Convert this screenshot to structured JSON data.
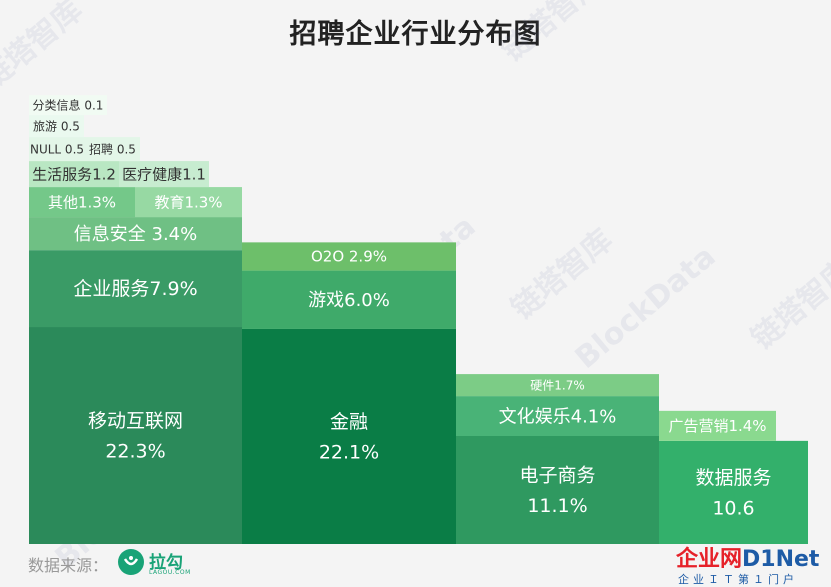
{
  "title": "招聘企业行业分布图",
  "source_label": "数据来源：",
  "logo": {
    "name": "拉勾",
    "sub": "LAGOU.COM"
  },
  "watermark": [
    "链塔智库",
    "BlockData"
  ],
  "brand": {
    "part1": "企业网",
    "part2": "D1Net",
    "tagline": "企业ＩＴ第１门户"
  },
  "chart_data": {
    "type": "stacked-bar",
    "title": "招聘企业行业分布图",
    "unit": "%",
    "columns": [
      {
        "id": "c1",
        "blocks": [
          {
            "name": "移动互联网",
            "value": 22.3,
            "label": "移动互联网\n22.3%",
            "color": "#2b8a5a"
          },
          {
            "name": "企业服务",
            "value": 7.9,
            "label": "企业服务7.9%",
            "color": "#3a9b66"
          },
          {
            "name": "信息安全",
            "value": 3.4,
            "label": "信息安全 3.4%",
            "color": "#6fc084"
          },
          {
            "name": "其他",
            "value": 1.3,
            "label": "其他1.3%",
            "color": "#74c889"
          },
          {
            "name": "教育",
            "value": 1.3,
            "label": "教育1.3%",
            "color": "#97d9a3"
          },
          {
            "name": "生活服务",
            "value": 1.2,
            "label": "生活服务1.2",
            "color": "#b9e7c3"
          },
          {
            "name": "医疗健康",
            "value": 1.1,
            "label": "医疗健康1.1",
            "color": "#c7ecd0"
          },
          {
            "name": "NULL",
            "value": 0.5,
            "label": "NULL 0.5",
            "color": "#e3f6e8"
          },
          {
            "name": "招聘",
            "value": 0.5,
            "label": "招聘 0.5",
            "color": "#e3f6e8"
          },
          {
            "name": "旅游",
            "value": 0.5,
            "label": "旅游 0.5",
            "color": "#eaf9ef"
          },
          {
            "name": "分类信息",
            "value": 0.1,
            "label": "分类信息 0.1",
            "color": "#f1fbf3"
          }
        ]
      },
      {
        "id": "c2",
        "blocks": [
          {
            "name": "金融",
            "value": 22.1,
            "label": "金融\n22.1%",
            "color": "#0a7d46"
          },
          {
            "name": "游戏",
            "value": 6.0,
            "label": "游戏6.0%",
            "color": "#3faa6a"
          },
          {
            "name": "O2O",
            "value": 2.9,
            "label": "O2O 2.9%",
            "color": "#6dbf6a"
          }
        ]
      },
      {
        "id": "c3",
        "blocks": [
          {
            "name": "电子商务",
            "value": 11.1,
            "label": "电子商务\n11.1%",
            "color": "#2f9960"
          },
          {
            "name": "文化娱乐",
            "value": 4.1,
            "label": "文化娱乐4.1%",
            "color": "#49b377"
          },
          {
            "name": "硬件",
            "value": 1.7,
            "label": "硬件1.7%",
            "color": "#7ccc86"
          }
        ]
      },
      {
        "id": "c4",
        "blocks": [
          {
            "name": "数据服务",
            "value": 10.6,
            "label": "数据服务\n10.6",
            "color": "#33b06b"
          },
          {
            "name": "广告营销",
            "value": 1.4,
            "label": "广告营销1.4%",
            "color": "#8ad98f"
          }
        ]
      }
    ]
  }
}
